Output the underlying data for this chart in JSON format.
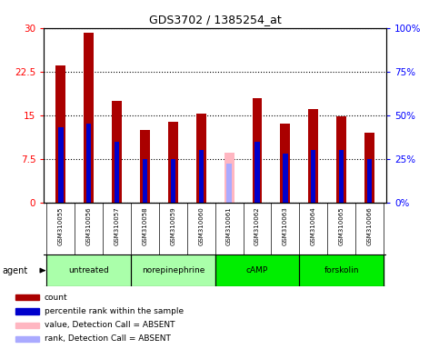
{
  "title": "GDS3702 / 1385254_at",
  "samples": [
    "GSM310055",
    "GSM310056",
    "GSM310057",
    "GSM310058",
    "GSM310059",
    "GSM310060",
    "GSM310061",
    "GSM310062",
    "GSM310063",
    "GSM310064",
    "GSM310065",
    "GSM310066"
  ],
  "count_values": [
    23.5,
    29.2,
    17.5,
    12.5,
    13.8,
    15.2,
    null,
    18.0,
    13.5,
    16.0,
    14.8,
    12.0
  ],
  "absent_value": [
    null,
    null,
    null,
    null,
    null,
    null,
    8.5,
    null,
    null,
    null,
    null,
    null
  ],
  "percentile_values": [
    43,
    45,
    35,
    25,
    25,
    30,
    null,
    35,
    28,
    30,
    30,
    25
  ],
  "absent_percentile": [
    null,
    null,
    null,
    null,
    null,
    null,
    22,
    null,
    null,
    null,
    null,
    null
  ],
  "ylim_left": [
    0,
    30
  ],
  "ylim_right": [
    0,
    100
  ],
  "yticks_left": [
    0,
    7.5,
    15,
    22.5,
    30
  ],
  "yticks_right": [
    0,
    25,
    50,
    75,
    100
  ],
  "ytick_labels_left": [
    "0",
    "7.5",
    "15",
    "22.5",
    "30"
  ],
  "ytick_labels_right": [
    "0%",
    "25%",
    "50%",
    "75%",
    "100%"
  ],
  "groups": [
    {
      "label": "untreated",
      "indices": [
        0,
        1,
        2
      ],
      "color": "#AAFFAA"
    },
    {
      "label": "norepinephrine",
      "indices": [
        3,
        4,
        5
      ],
      "color": "#AAFFAA"
    },
    {
      "label": "cAMP",
      "indices": [
        6,
        7,
        8
      ],
      "color": "#00EE00"
    },
    {
      "label": "forskolin",
      "indices": [
        9,
        10,
        11
      ],
      "color": "#00EE00"
    }
  ],
  "bar_color": "#AA0000",
  "bar_absent_color": "#FFB6C1",
  "rank_color": "#0000CC",
  "rank_absent_color": "#AAAAFF",
  "bar_width": 0.35,
  "grid_color": "#000000",
  "background_color": "#FFFFFF",
  "plot_bg_color": "#FFFFFF",
  "xlabel_area_color": "#D3D3D3",
  "agent_label": "agent",
  "legend_items": [
    {
      "color": "#AA0000",
      "label": "count"
    },
    {
      "color": "#0000CC",
      "label": "percentile rank within the sample"
    },
    {
      "color": "#FFB6C1",
      "label": "value, Detection Call = ABSENT"
    },
    {
      "color": "#AAAAFF",
      "label": "rank, Detection Call = ABSENT"
    }
  ]
}
